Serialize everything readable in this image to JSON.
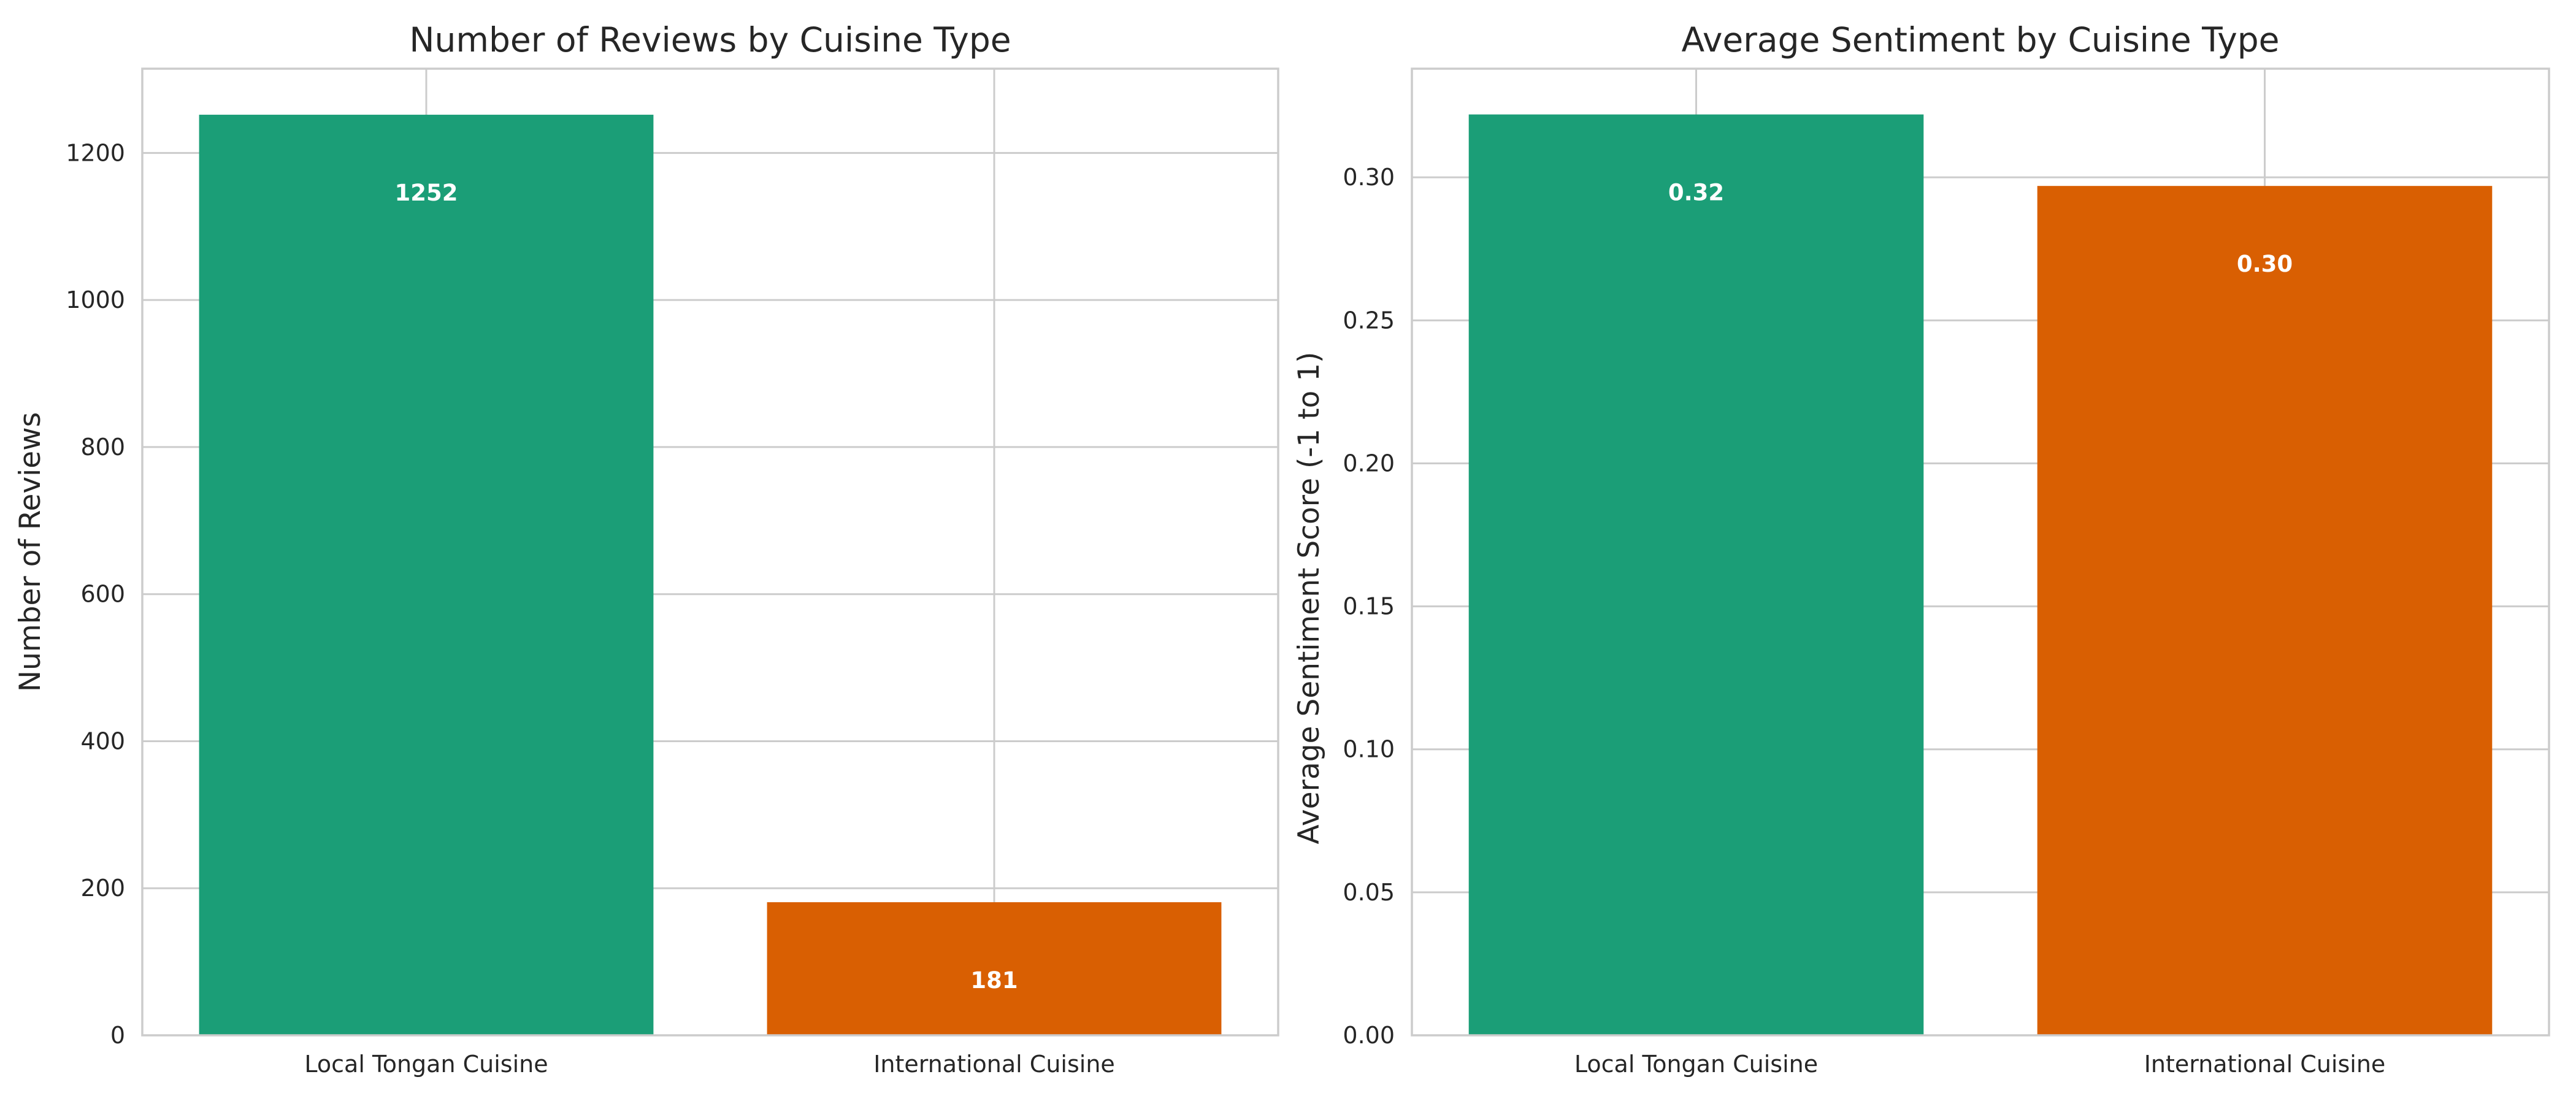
{
  "chart_data": [
    {
      "type": "bar",
      "title": "Number of Reviews by Cuisine Type",
      "xlabel": "",
      "ylabel": "Number of Reviews",
      "categories": [
        "Local Tongan Cuisine",
        "International Cuisine"
      ],
      "values": [
        1252,
        181
      ],
      "data_labels": [
        "1252",
        "181"
      ],
      "ylim": [
        0,
        1314.6
      ],
      "yticks": [
        0,
        200,
        400,
        600,
        800,
        1000,
        1200
      ],
      "ytick_labels": [
        "0",
        "200",
        "400",
        "600",
        "800",
        "1000",
        "1200"
      ],
      "colors": [
        "#1b9e77",
        "#d95f02"
      ],
      "grid": true,
      "legend": "none"
    },
    {
      "type": "bar",
      "title": "Average Sentiment by Cuisine Type",
      "xlabel": "",
      "ylabel": "Average Sentiment Score (-1 to 1)",
      "categories": [
        "Local Tongan Cuisine",
        "International Cuisine"
      ],
      "values": [
        0.322,
        0.297
      ],
      "data_labels": [
        "0.32",
        "0.30"
      ],
      "ylim": [
        0,
        0.338
      ],
      "yticks": [
        0.0,
        0.05,
        0.1,
        0.15,
        0.2,
        0.25,
        0.3
      ],
      "ytick_labels": [
        "0.00",
        "0.05",
        "0.10",
        "0.15",
        "0.20",
        "0.25",
        "0.30"
      ],
      "colors": [
        "#1b9e77",
        "#d95f02"
      ],
      "grid": true,
      "legend": "none"
    }
  ]
}
